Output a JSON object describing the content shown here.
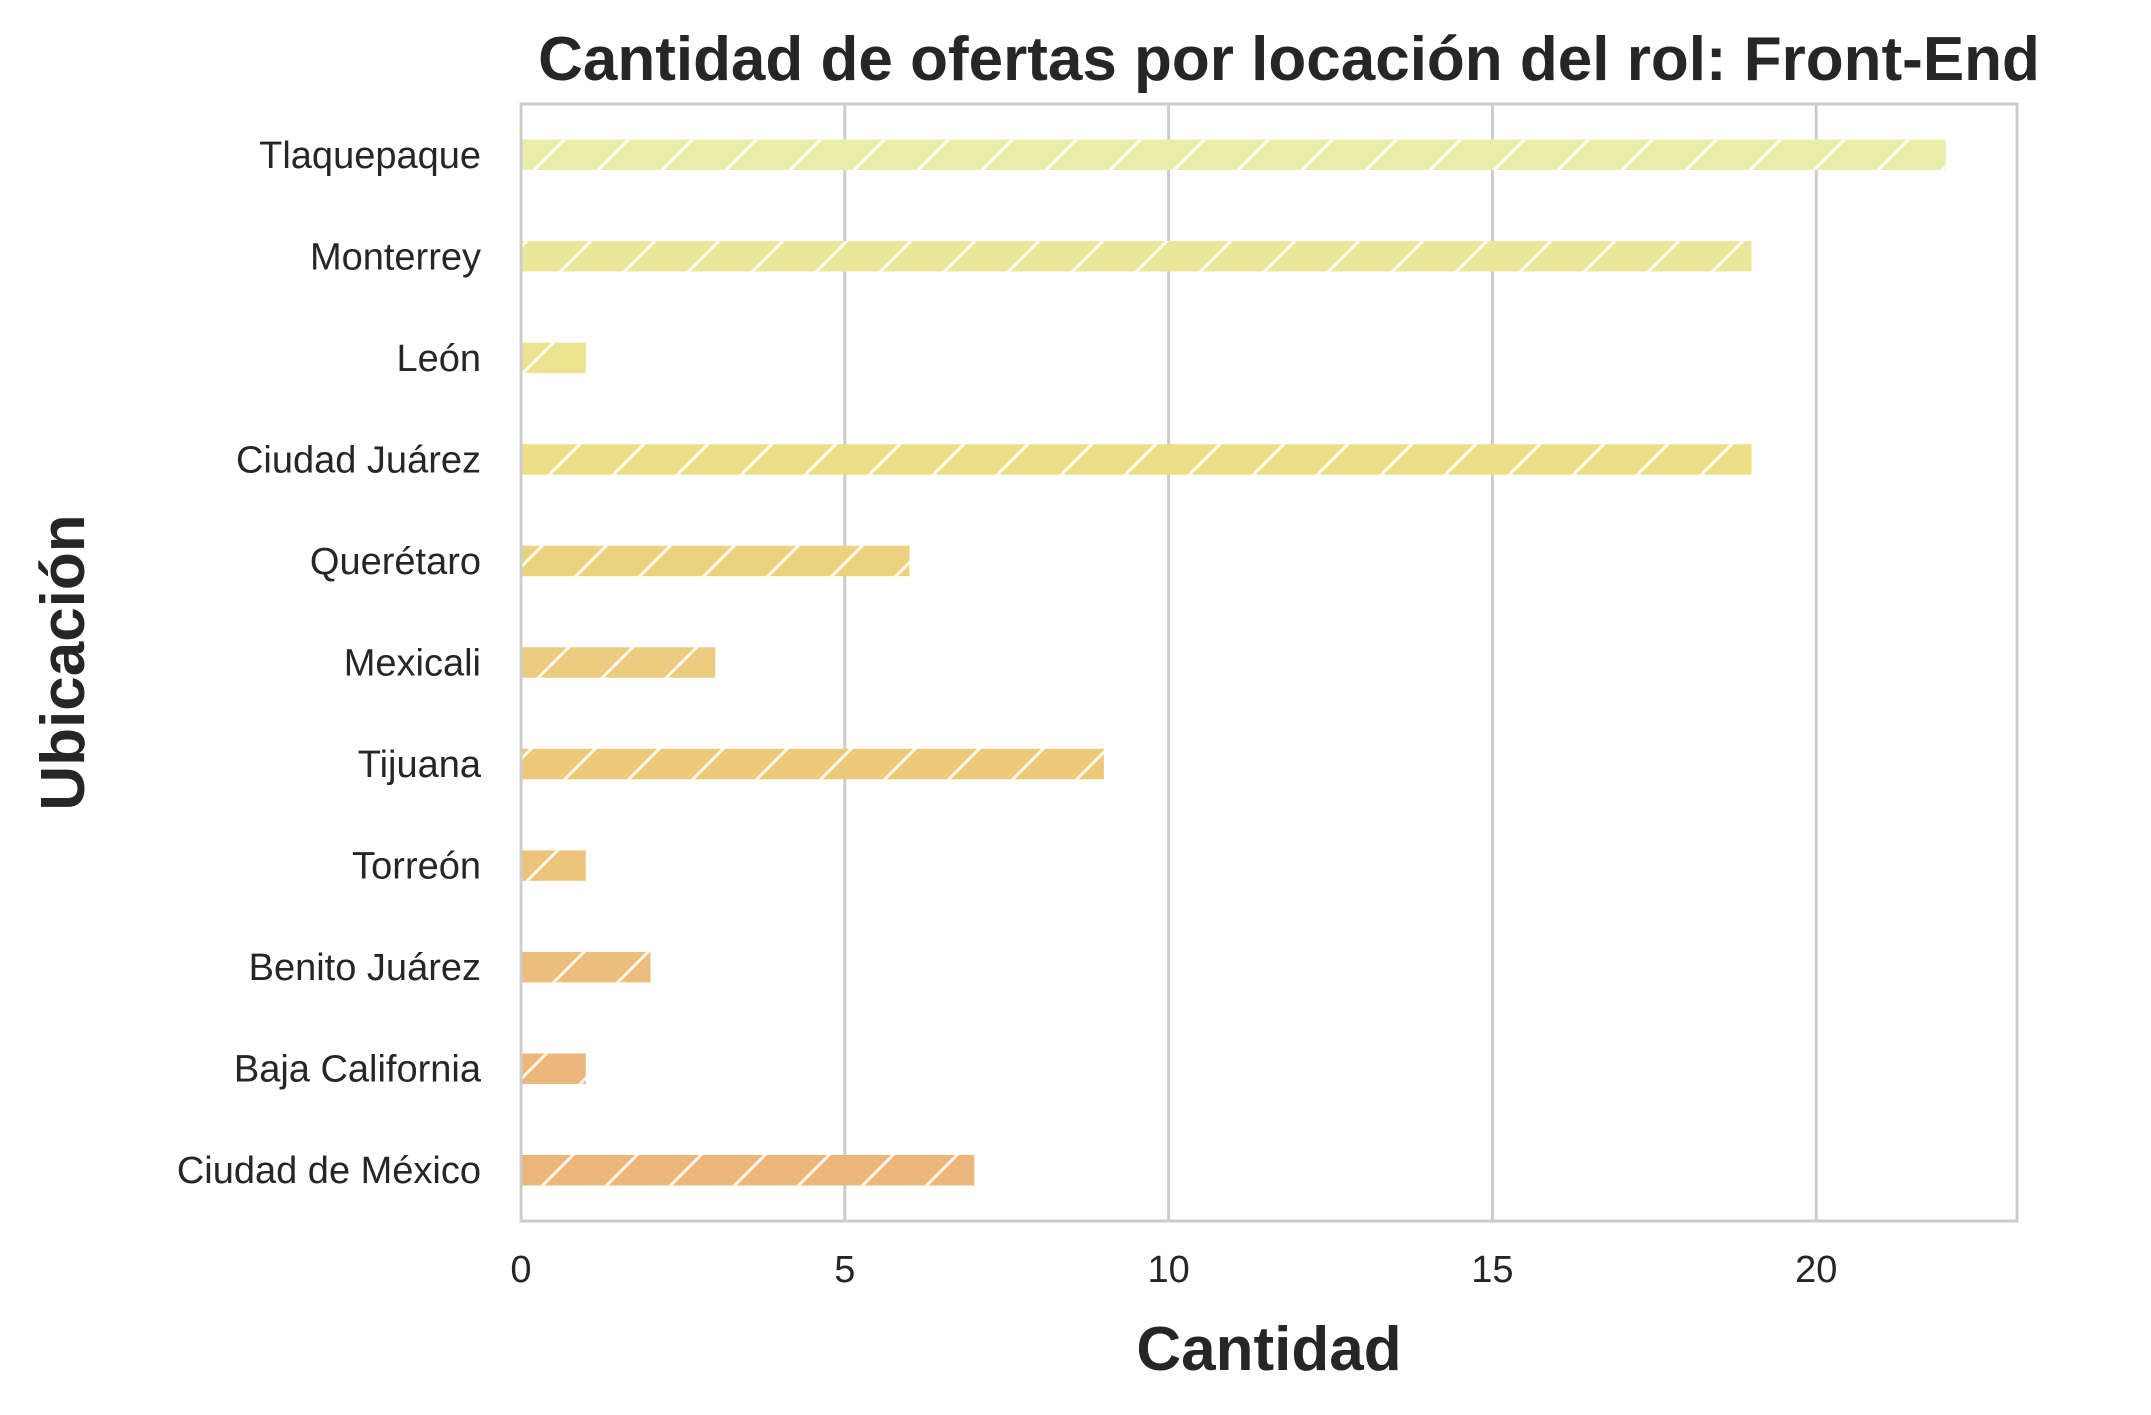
{
  "chart_data": {
    "type": "bar",
    "orientation": "horizontal",
    "title": "Cantidad de ofertas por locación del rol: Front-End",
    "xlabel": "Cantidad",
    "ylabel": "Ubicación",
    "categories": [
      "Tlaquepaque",
      "Monterrey",
      "León",
      "Ciudad Juárez",
      "Querétaro",
      "Mexicali",
      "Tijuana",
      "Torreón",
      "Benito Juárez",
      "Baja California",
      "Ciudad de México"
    ],
    "values": [
      22,
      19,
      1,
      19,
      6,
      3,
      9,
      1,
      2,
      1,
      7
    ],
    "colors": [
      "#eaeda7",
      "#ebe79a",
      "#ece391",
      "#ecdf87",
      "#ebd27e",
      "#ebcc7e",
      "#ebc978",
      "#ebc37b",
      "#ebbe7c",
      "#ebb77b",
      "#ebb67a"
    ],
    "xlim": [
      0,
      23.1
    ],
    "xticks": [
      0,
      5,
      10,
      15,
      20
    ],
    "grid": "vertical",
    "hatch": "diagonal",
    "legend": "none"
  }
}
